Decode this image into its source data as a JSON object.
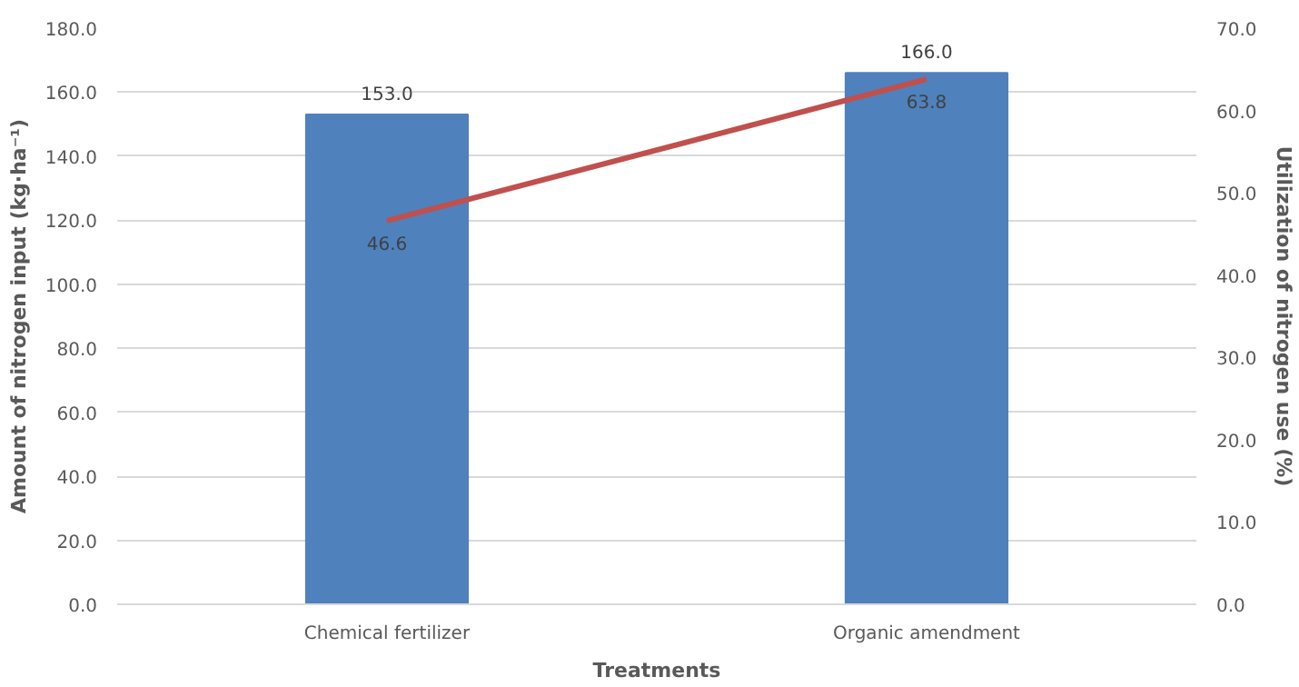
{
  "chart_data": {
    "type": "bar",
    "xlabel": "Treatments",
    "ylabel": "Amount of nitrogen input (kg·ha⁻¹)",
    "y2label": "Utilization of nitrogen use (%)",
    "categories": [
      "Chemical fertilizer",
      "Organic amendment"
    ],
    "series": [
      {
        "color": "#4f81bd",
        "values": [
          153.0,
          166.0
        ],
        "value_labels": [
          "153.0",
          "166.0"
        ]
      },
      {
        "type": "line",
        "axis": "y2",
        "color": "#c0504d",
        "values": [
          46.6,
          63.8
        ],
        "value_labels": [
          "46.6",
          "63.8"
        ]
      }
    ],
    "ylim": [
      0,
      180
    ],
    "yticks": [
      {
        "value": 0,
        "label": "0.0"
      },
      {
        "value": 20,
        "label": "20.0"
      },
      {
        "value": 40,
        "label": "40.0"
      },
      {
        "value": 60,
        "label": "60.0"
      },
      {
        "value": 80,
        "label": "80.0"
      },
      {
        "value": 100,
        "label": "100.0"
      },
      {
        "value": 120,
        "label": "120.0"
      },
      {
        "value": 140,
        "label": "140.0"
      },
      {
        "value": 160,
        "label": "160.0"
      },
      {
        "value": 180,
        "label": "180.0"
      }
    ],
    "y2lim": [
      0,
      70
    ],
    "y2ticks": [
      {
        "value": 0,
        "label": "0.0"
      },
      {
        "value": 10,
        "label": "10.0"
      },
      {
        "value": 20,
        "label": "20.0"
      },
      {
        "value": 30,
        "label": "30.0"
      },
      {
        "value": 40,
        "label": "40.0"
      },
      {
        "value": 50,
        "label": "50.0"
      },
      {
        "value": 60,
        "label": "60.0"
      },
      {
        "value": 70,
        "label": "70.0"
      }
    ],
    "grid": "y",
    "marker": "none",
    "line_style": "solid"
  }
}
